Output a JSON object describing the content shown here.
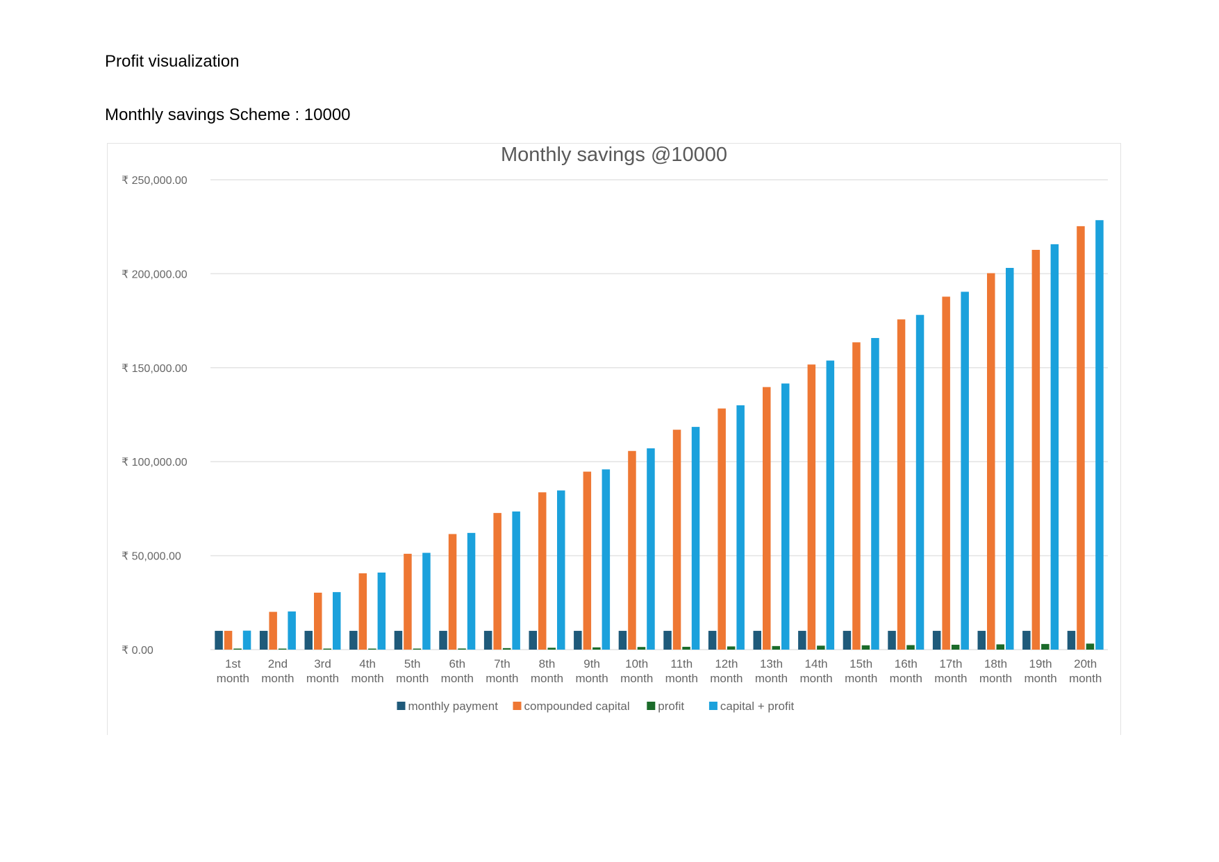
{
  "document": {
    "heading": "Profit visualization",
    "subheading": "Monthly savings Scheme : 10000"
  },
  "chart_data": {
    "type": "bar",
    "title": "Monthly savings @10000",
    "xlabel": "",
    "ylabel": "",
    "ylim": [
      0,
      250000
    ],
    "y_ticks": [
      0,
      50000,
      100000,
      150000,
      200000,
      250000
    ],
    "y_tick_labels": [
      "₹ 0.00",
      "₹ 50,000.00",
      "₹ 100,000.00",
      "₹ 150,000.00",
      "₹ 200,000.00",
      "₹ 250,000.00"
    ],
    "grid": true,
    "legend_position": "bottom",
    "categories": [
      [
        "1st",
        "month"
      ],
      [
        "2nd",
        "month"
      ],
      [
        "3rd",
        "month"
      ],
      [
        "4th",
        "month"
      ],
      [
        "5th",
        "month"
      ],
      [
        "6th",
        "month"
      ],
      [
        "7th",
        "month"
      ],
      [
        "8th",
        "month"
      ],
      [
        "9th",
        "month"
      ],
      [
        "10th",
        "month"
      ],
      [
        "11th",
        "month"
      ],
      [
        "12th",
        "month"
      ],
      [
        "13th",
        "month"
      ],
      [
        "14th",
        "month"
      ],
      [
        "15th",
        "month"
      ],
      [
        "16th",
        "month"
      ],
      [
        "17th",
        "month"
      ],
      [
        "18th",
        "month"
      ],
      [
        "19th",
        "month"
      ],
      [
        "20th",
        "month"
      ]
    ],
    "series": [
      {
        "name": "monthly payment",
        "color": "#1f5a7a",
        "values": [
          10000,
          10000,
          10000,
          10000,
          10000,
          10000,
          10000,
          10000,
          10000,
          10000,
          10000,
          10000,
          10000,
          10000,
          10000,
          10000,
          10000,
          10000,
          10000,
          10000
        ]
      },
      {
        "name": "compounded capital",
        "color": "#ee7733",
        "values": [
          10000,
          20100,
          30300,
          40600,
          51000,
          61500,
          72700,
          83700,
          94700,
          105700,
          117000,
          128300,
          139700,
          151700,
          163500,
          175700,
          187800,
          200300,
          212700,
          225300
        ]
      },
      {
        "name": "profit",
        "color": "#1b6b2a",
        "values": [
          100,
          200,
          300,
          400,
          500,
          600,
          800,
          1000,
          1200,
          1400,
          1500,
          1700,
          1900,
          2100,
          2300,
          2400,
          2600,
          2800,
          3000,
          3200
        ]
      },
      {
        "name": "capital + profit",
        "color": "#1ba1dc",
        "values": [
          10100,
          20300,
          30600,
          41000,
          51500,
          62100,
          73500,
          84700,
          95900,
          107100,
          118500,
          130000,
          141600,
          153800,
          165800,
          178100,
          190400,
          203100,
          215700,
          228500
        ]
      }
    ]
  }
}
